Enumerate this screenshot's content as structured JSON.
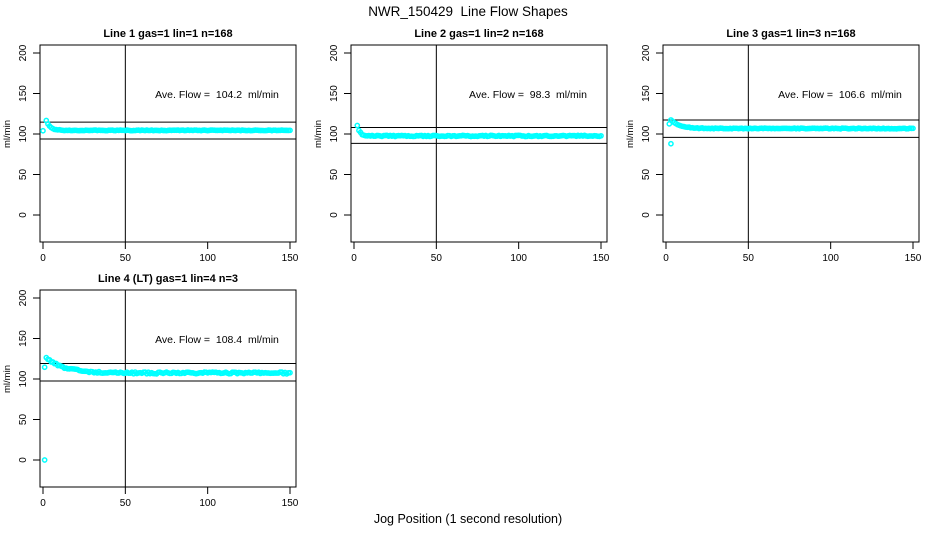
{
  "figure": {
    "title": "NWR_150429  Line Flow Shapes",
    "x_label": "Jog Position (1 second resolution)",
    "y_unit_label": "ml/min",
    "point_color": "#00FFFF",
    "axis_color": "#000000",
    "background_color": "#FFFFFF"
  },
  "chart_data": [
    {
      "type": "scatter",
      "title": "Line 1 gas=1 lin=1 n=168",
      "annotation": "Ave. Flow =  104.2  ml/min",
      "ave_flow": 104.2,
      "ylabel": "ml/min",
      "xlim": [
        0,
        150
      ],
      "ylim": [
        0,
        200
      ],
      "x_ticks": [
        0,
        50,
        100,
        150
      ],
      "y_ticks": [
        0,
        50,
        100,
        150,
        200
      ],
      "vline_x": 50,
      "hlines": [
        114.6,
        93.8
      ],
      "series": {
        "model": "exponential-decay",
        "x_start": 2,
        "x_end": 150,
        "x_step": 1,
        "peak": 116.5,
        "settle": 104.5,
        "tau": 2.3,
        "noise": 0.4
      },
      "outliers": [
        [
          0,
          104
        ]
      ]
    },
    {
      "type": "scatter",
      "title": "Line 2 gas=1 lin=2 n=168",
      "annotation": "Ave. Flow =  98.3  ml/min",
      "ave_flow": 98.3,
      "ylabel": "ml/min",
      "xlim": [
        0,
        150
      ],
      "ylim": [
        0,
        200
      ],
      "x_ticks": [
        0,
        50,
        100,
        150
      ],
      "y_ticks": [
        0,
        50,
        100,
        150,
        200
      ],
      "vline_x": 50,
      "hlines": [
        108.1,
        88.5
      ],
      "series": {
        "model": "exponential-decay",
        "x_start": 2,
        "x_end": 150,
        "x_step": 1,
        "peak": 110.5,
        "settle": 97.6,
        "tau": 1.6,
        "noise": 0.7
      },
      "outliers": []
    },
    {
      "type": "scatter",
      "title": "Line 3 gas=1 lin=3 n=168",
      "annotation": "Ave. Flow =  106.6  ml/min",
      "ave_flow": 106.6,
      "ylabel": "ml/min",
      "xlim": [
        0,
        150
      ],
      "ylim": [
        0,
        200
      ],
      "x_ticks": [
        0,
        50,
        100,
        150
      ],
      "y_ticks": [
        0,
        50,
        100,
        150,
        200
      ],
      "vline_x": 50,
      "hlines": [
        117.3,
        95.9
      ],
      "series": {
        "model": "exponential-decay",
        "x_start": 3,
        "x_end": 150,
        "x_step": 1,
        "peak": 117,
        "settle": 106.8,
        "tau": 5.5,
        "noise": 0.45
      },
      "outliers": [
        [
          2,
          112.5
        ],
        [
          3,
          88
        ]
      ]
    },
    {
      "type": "scatter",
      "title": "Line 4 (LT) gas=1 lin=4 n=3",
      "annotation": "Ave. Flow =  108.4  ml/min",
      "ave_flow": 108.4,
      "ylabel": "ml/min",
      "xlim": [
        0,
        150
      ],
      "ylim": [
        0,
        200
      ],
      "x_ticks": [
        0,
        50,
        100,
        150
      ],
      "y_ticks": [
        0,
        50,
        100,
        150,
        200
      ],
      "vline_x": 50,
      "hlines": [
        119.2,
        97.6
      ],
      "series": {
        "model": "exponential-decay",
        "x_start": 2,
        "x_end": 150,
        "x_step": 1,
        "peak": 126,
        "settle": 107.4,
        "tau": 11,
        "noise": 1.1
      },
      "outliers": [
        [
          1,
          114.5
        ],
        [
          1,
          0
        ]
      ]
    }
  ]
}
